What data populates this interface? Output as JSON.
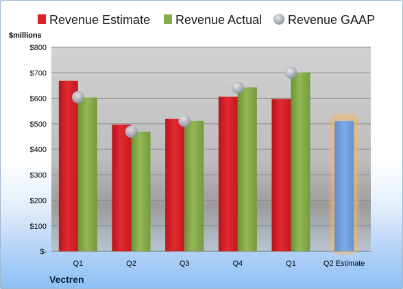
{
  "chart_data": {
    "type": "bar",
    "company": "Vectren",
    "unit_label": "$millions",
    "categories": [
      "Q1",
      "Q2",
      "Q3",
      "Q4",
      "Q1",
      "Q2 Estimate"
    ],
    "series": [
      {
        "name": "Revenue Estimate",
        "color": "#dd2128",
        "values": [
          669,
          497,
          519,
          606,
          597,
          null
        ]
      },
      {
        "name": "Revenue Actual",
        "color": "#86ad46",
        "values": [
          603,
          469,
          511,
          643,
          701,
          null
        ]
      },
      {
        "name": "Revenue GAAP",
        "color": "#b8bcc4",
        "marker": "circle",
        "values": [
          604,
          469,
          511,
          642,
          701,
          null
        ]
      }
    ],
    "highlight": {
      "category_index": 5,
      "value": 510,
      "color": "#6f9fdb",
      "glow_color": "#f5b562"
    },
    "yticks": [
      0,
      100,
      200,
      300,
      400,
      500,
      600,
      700,
      800
    ],
    "ytick_labels": [
      "$-",
      "$100",
      "$200",
      "$300",
      "$400",
      "$500",
      "$600",
      "$700",
      "$800"
    ],
    "ylim": [
      0,
      800
    ],
    "grid": true,
    "legend_position": "top"
  }
}
